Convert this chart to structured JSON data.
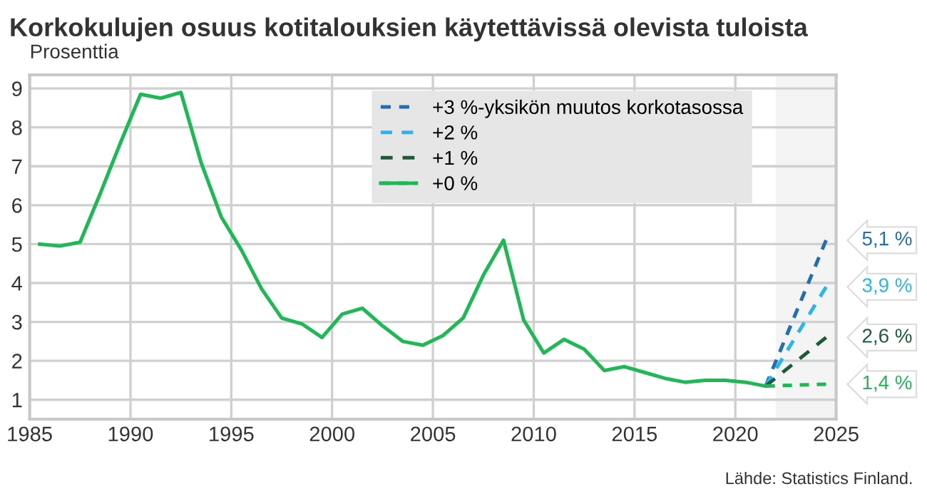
{
  "chart_data": {
    "type": "line",
    "title": "Korkokulujen osuus kotitalouksien käytettävissä olevista tuloista",
    "ylabel": "Prosenttia",
    "annotations": [
      "Lähde: Statistics Finland."
    ],
    "xlim": [
      1985,
      2025
    ],
    "xticks": [
      1985,
      1990,
      1995,
      2000,
      2005,
      2010,
      2015,
      2020,
      2025
    ],
    "ylim": [
      0.5,
      9.35
    ],
    "yticks": [
      1,
      2,
      3,
      4,
      5,
      6,
      7,
      8,
      9
    ],
    "grid": true,
    "legend": "top",
    "marker": "none",
    "bands": [
      {
        "axis": "x",
        "from": 2022,
        "to": 2025,
        "label": null,
        "color": "#f4f4f4"
      }
    ],
    "series": [
      {
        "name": "+3 %-yksikön muutos korkotasossa",
        "color": "#1f6fb2",
        "line_style": "dashed",
        "x": [
          2021.5,
          2024.5
        ],
        "values": [
          1.35,
          5.1
        ],
        "value_labels": [
          null,
          "5,1 %"
        ]
      },
      {
        "name": "+2 %",
        "color": "#29b6f0",
        "line_style": "dashed",
        "x": [
          2021.5,
          2024.5
        ],
        "values": [
          1.35,
          3.9
        ],
        "value_labels": [
          null,
          "3,9 %"
        ]
      },
      {
        "name": "+1 %",
        "color": "#1a5c38",
        "line_style": "dashed",
        "x": [
          2021.5,
          2024.5
        ],
        "values": [
          1.35,
          2.6
        ],
        "value_labels": [
          null,
          "2,6 %"
        ]
      },
      {
        "name": "+0 %",
        "color": "#1db954",
        "line_style": "solid",
        "x": [
          1985.5,
          1986.5,
          1987.5,
          1988.5,
          1989.5,
          1990.5,
          1991.5,
          1992.5,
          1993.5,
          1994.5,
          1995.5,
          1996.5,
          1997.5,
          1998.5,
          1999.5,
          2000.5,
          2001.5,
          2002.5,
          2003.5,
          2004.5,
          2005.5,
          2006.5,
          2007.5,
          2008.5,
          2009.5,
          2010.5,
          2011.5,
          2012.5,
          2013.5,
          2014.5,
          2015.5,
          2016.5,
          2017.5,
          2018.5,
          2019.5,
          2020.5,
          2021.5
        ],
        "values": [
          5.0,
          4.95,
          5.05,
          6.3,
          7.6,
          8.85,
          8.75,
          8.9,
          7.1,
          5.7,
          4.85,
          3.85,
          3.1,
          2.95,
          2.6,
          3.2,
          3.35,
          2.9,
          2.5,
          2.4,
          2.65,
          3.1,
          4.2,
          5.1,
          3.05,
          2.2,
          2.55,
          2.3,
          1.75,
          1.85,
          1.7,
          1.55,
          1.45,
          1.5,
          1.5,
          1.45,
          1.35
        ]
      },
      {
        "color": "#1db954",
        "line_style": "dashed",
        "x": [
          2021.5,
          2024.5
        ],
        "values": [
          1.35,
          1.4
        ],
        "value_labels": [
          null,
          "1,4 %"
        ]
      }
    ]
  }
}
